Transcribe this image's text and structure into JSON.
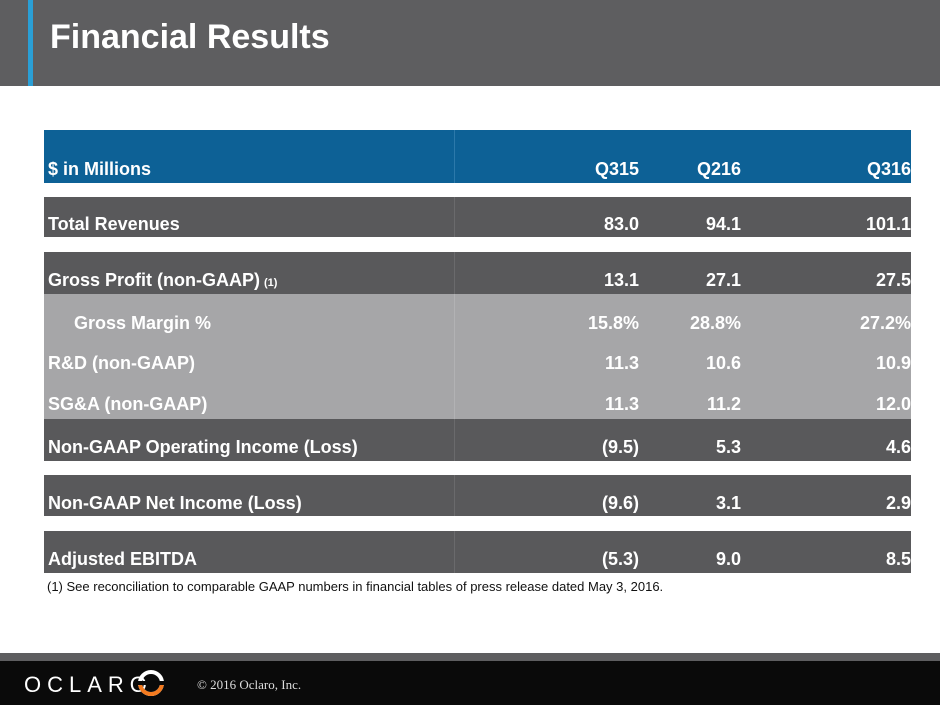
{
  "slide": {
    "title": "Financial Results"
  },
  "table": {
    "header": {
      "label": "$ in Millions",
      "cols": [
        "Q315",
        "Q216",
        "Q316"
      ]
    },
    "rows": [
      {
        "label": "Total Revenues",
        "values": [
          "83.0",
          "94.1",
          "101.1"
        ]
      },
      {
        "label": "Gross Profit (non-GAAP)",
        "note": "(1)",
        "values": [
          "13.1",
          "27.1",
          "27.5"
        ]
      },
      {
        "label": "Gross Margin %",
        "values": [
          "15.8%",
          "28.8%",
          "27.2%"
        ]
      },
      {
        "label": "R&D (non-GAAP)",
        "values": [
          "11.3",
          "10.6",
          "10.9"
        ]
      },
      {
        "label": "SG&A (non-GAAP)",
        "values": [
          "11.3",
          "11.2",
          "12.0"
        ]
      },
      {
        "label": "Non-GAAP Operating Income (Loss)",
        "values": [
          "(9.5)",
          "5.3",
          "4.6"
        ]
      },
      {
        "label": "Non-GAAP Net Income (Loss)",
        "values": [
          "(9.6)",
          "3.1",
          "2.9"
        ]
      },
      {
        "label": "Adjusted EBITDA",
        "values": [
          "(5.3)",
          "9.0",
          "8.5"
        ]
      }
    ]
  },
  "footnote": "(1) See reconciliation to comparable GAAP numbers in financial tables of press release dated May 3, 2016.",
  "footer": {
    "logo_text": "OCLARO",
    "copyright": "© 2016 Oclaro, Inc."
  },
  "colors": {
    "header_bar": "#5e5e60",
    "accent": "#2a9fd6",
    "table_header": "#0d6196",
    "row_dark": "#59595b",
    "row_light": "#a6a6a8",
    "logo_orange": "#f47b20"
  }
}
